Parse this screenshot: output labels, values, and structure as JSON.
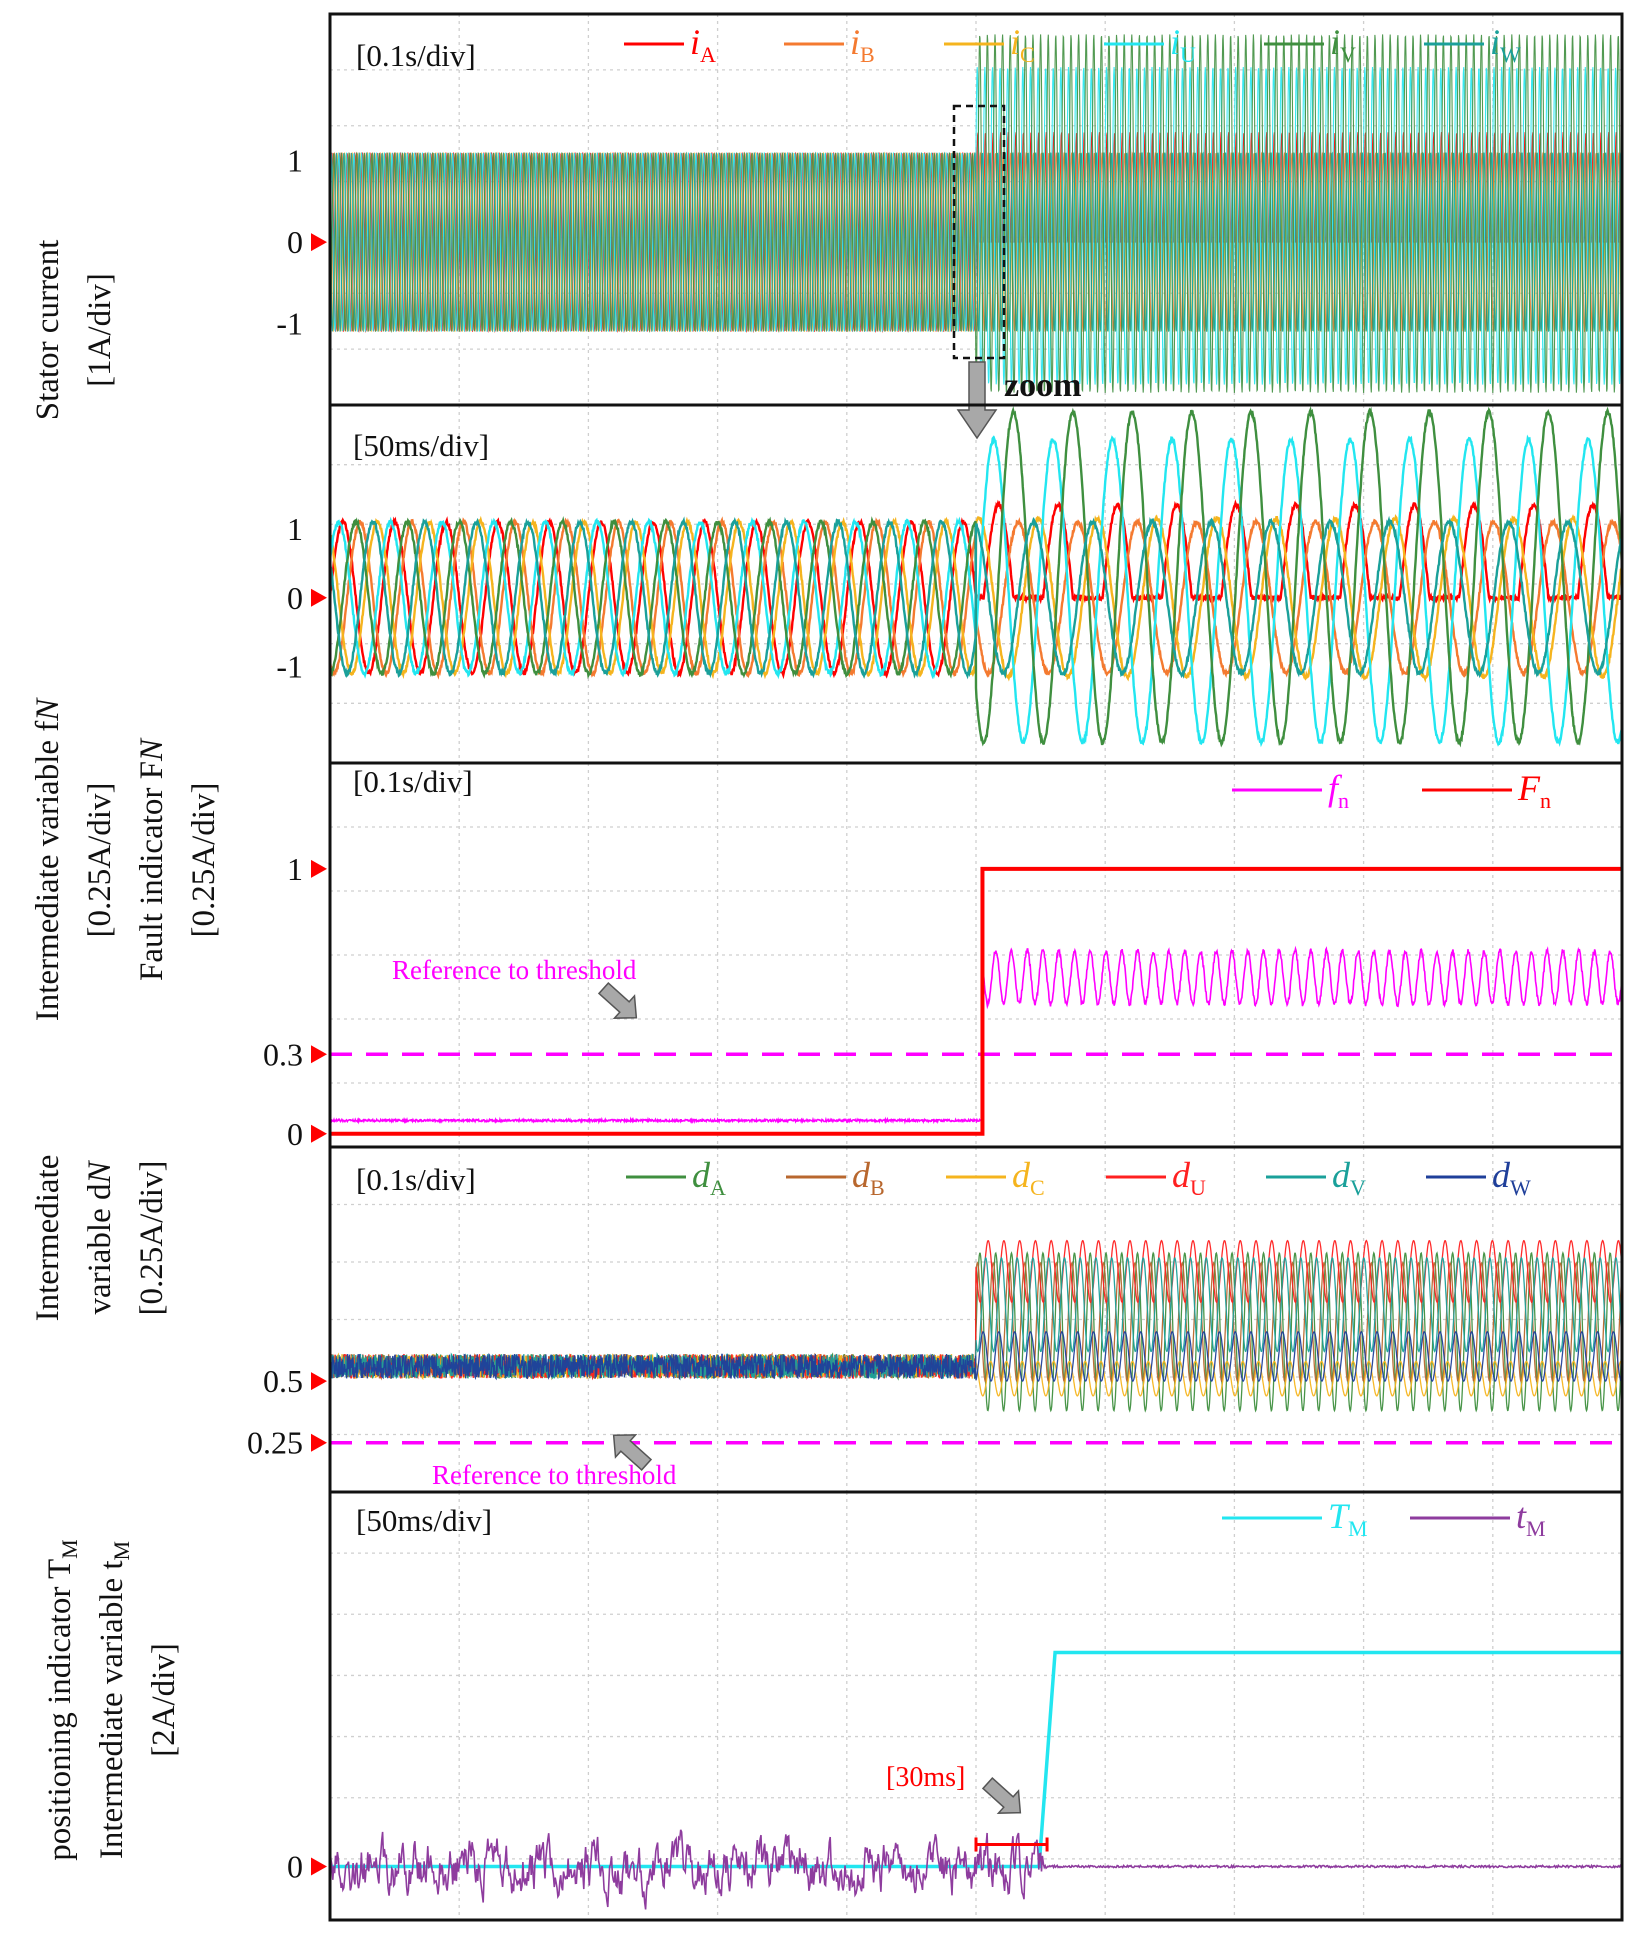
{
  "figure": {
    "ylabels": {
      "stator": [
        "Stator current",
        "[1A/div]"
      ],
      "fault": [
        "Intermediate variable f",
        "[0.25A/div]",
        "Fault indicator F",
        "[0.25A/div]"
      ],
      "dn": [
        "Intermediate",
        "variable d",
        "[0.25A/div]"
      ],
      "pos": [
        "positioning indicator T",
        "Intermediate variable t",
        "[2A/div]"
      ]
    },
    "zoom_label": "zoom"
  },
  "chart_data": [
    {
      "id": "stator_current_overview",
      "type": "line",
      "timebase": "[0.1s/div]",
      "ylim": [
        -2.0,
        2.8
      ],
      "yticks": [
        "1",
        "0",
        "-1"
      ],
      "ytick_values": [
        1,
        0,
        -1
      ],
      "ground_marker": "0",
      "grid": true,
      "legend_position": "top",
      "fault_time_div": 5.0,
      "series": [
        {
          "name": "iA",
          "base": "i",
          "sub": "A",
          "color": "#ff0000",
          "amp_before": 1.1,
          "amp_after": 1.35
        },
        {
          "name": "iB",
          "base": "i",
          "sub": "B",
          "color": "#f47a30",
          "amp_before": 1.1,
          "amp_after": 1.1
        },
        {
          "name": "iC",
          "base": "i",
          "sub": "C",
          "color": "#f5b41e",
          "amp_before": 1.1,
          "amp_after": 1.1
        },
        {
          "name": "iU",
          "base": "i",
          "sub": "U",
          "color": "#22e6f0",
          "amp_before": 1.1,
          "amp_after": 1.95
        },
        {
          "name": "iV",
          "base": "i",
          "sub": "V",
          "color": "#3f8f3f",
          "amp_before": 1.1,
          "amp_after": 2.2
        },
        {
          "name": "iW",
          "base": "i",
          "sub": "W",
          "color": "#1aa09a",
          "amp_before": 1.1,
          "amp_after": 1.1
        }
      ]
    },
    {
      "id": "stator_current_zoom",
      "type": "line",
      "timebase": "[50ms/div]",
      "ylim": [
        -2.4,
        2.8
      ],
      "yticks": [
        "1",
        "0",
        "-1"
      ],
      "ytick_values": [
        1,
        0,
        -1
      ],
      "ground_marker": "0",
      "grid": true,
      "fault_time_div": 5.0,
      "period_div": 0.4,
      "series": [
        {
          "name": "iA",
          "color": "#ff0000",
          "amp_before": 1.1,
          "shape_after": "clipped_positive",
          "amp_after": 1.35
        },
        {
          "name": "iB",
          "color": "#f47a30",
          "amp_before": 1.1,
          "amp_after": 1.1
        },
        {
          "name": "iC",
          "color": "#f5b41e",
          "amp_before": 1.1,
          "amp_after": 1.15
        },
        {
          "name": "iU",
          "color": "#22e6f0",
          "amp_before": 1.1,
          "amp_after": 2.2
        },
        {
          "name": "iV",
          "color": "#3f8f3f",
          "amp_before": 1.1,
          "amp_after": 2.4
        },
        {
          "name": "iW",
          "color": "#1aa09a",
          "amp_before": 1.1,
          "amp_after": 1.1
        }
      ]
    },
    {
      "id": "fault_indicator",
      "type": "line",
      "timebase": "[0.1s/div]",
      "ylim": [
        -0.05,
        1.4
      ],
      "yticks": [
        "1",
        "0.3",
        "0"
      ],
      "ytick_values": [
        1,
        0.3,
        0
      ],
      "grid": true,
      "legend_position": "top-right",
      "threshold": 0.3,
      "threshold_label": "Reference to threshold",
      "fault_time_div": 5.05,
      "series": [
        {
          "name": "fn",
          "base": "f",
          "sub": "n",
          "color": "#ff00ff",
          "before": 0.05,
          "after_mean": 0.59,
          "after_ripple": 0.1
        },
        {
          "name": "Fn",
          "base": "F",
          "sub": "n",
          "color": "#ff0000",
          "before": 0,
          "after": 1
        }
      ]
    },
    {
      "id": "intermediate_dn",
      "type": "line",
      "timebase": "[0.1s/div]",
      "ylim": [
        0.05,
        1.45
      ],
      "yticks": [
        "0.5",
        "0.25"
      ],
      "ytick_values": [
        0.5,
        0.25
      ],
      "grid": true,
      "legend_position": "top",
      "threshold": 0.25,
      "threshold_label": "Reference to threshold",
      "fault_time_div": 5.0,
      "series": [
        {
          "name": "dA",
          "base": "d",
          "sub": "A",
          "color": "#3f8f3f",
          "before": 0.56,
          "after_lo": 0.38,
          "after_hi": 1.02
        },
        {
          "name": "dB",
          "base": "d",
          "sub": "B",
          "color": "#b8672e",
          "before": 0.56,
          "after_lo": 0.5,
          "after_hi": 0.98
        },
        {
          "name": "dC",
          "base": "d",
          "sub": "C",
          "color": "#f5b41e",
          "before": 0.56,
          "after_lo": 0.44,
          "after_hi": 0.58
        },
        {
          "name": "dU",
          "base": "d",
          "sub": "U",
          "color": "#ff2020",
          "before": 0.56,
          "after_lo": 0.82,
          "after_hi": 1.07
        },
        {
          "name": "dV",
          "base": "d",
          "sub": "V",
          "color": "#1aa09a",
          "before": 0.56,
          "after_lo": 0.62,
          "after_hi": 1.0
        },
        {
          "name": "dW",
          "base": "d",
          "sub": "W",
          "color": "#1f3f9a",
          "before": 0.56,
          "after_lo": 0.5,
          "after_hi": 0.7
        }
      ]
    },
    {
      "id": "positioning",
      "type": "line",
      "timebase": "[50ms/div]",
      "ylim": [
        -0.5,
        3.5
      ],
      "yticks": [
        "0"
      ],
      "ytick_values": [
        0
      ],
      "grid": true,
      "legend_position": "top-right",
      "annotation": "[30ms]",
      "fault_time_div": 5.0,
      "detect_time_div": 5.55,
      "series": [
        {
          "name": "TM",
          "base": "T",
          "sub": "M",
          "color": "#22e6f0",
          "before": 0,
          "after": 2.0
        },
        {
          "name": "tM",
          "base": "t",
          "sub": "M",
          "color": "#8e3c9e",
          "noise_before": 0.22,
          "noise_after": 0.02
        }
      ]
    }
  ]
}
